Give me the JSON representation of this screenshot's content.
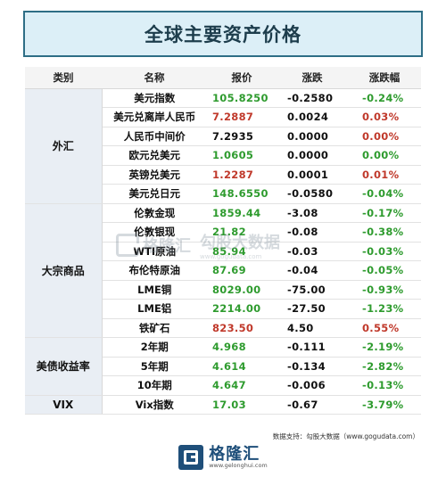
{
  "title": "全球主要资产价格",
  "headers": {
    "category": "类别",
    "name": "名称",
    "price": "报价",
    "change": "涨跌",
    "pct": "涨跌幅"
  },
  "colors": {
    "up": "#c0392b",
    "down": "#2e9b2e",
    "flat": "#c0392b",
    "title_border": "#2e6e86",
    "title_bg": "#dceff7"
  },
  "groups": [
    {
      "category": "外汇",
      "rows": [
        {
          "name": "美元指数",
          "price": "105.8250",
          "change": "-0.2580",
          "pct": "-0.24%",
          "dir": "down"
        },
        {
          "name": "美元兑离岸人民币",
          "price": "7.2887",
          "change": "0.0024",
          "pct": "0.03%",
          "dir": "up"
        },
        {
          "name": "人民币中间价",
          "price": "7.2935",
          "change": "0.0000",
          "pct": "0.00%",
          "dir": "flat_black"
        },
        {
          "name": "欧元兑美元",
          "price": "1.0605",
          "change": "0.0000",
          "pct": "0.00%",
          "dir": "flat_green"
        },
        {
          "name": "英镑兑美元",
          "price": "1.2287",
          "change": "0.0001",
          "pct": "0.01%",
          "dir": "up"
        },
        {
          "name": "美元兑日元",
          "price": "148.6550",
          "change": "-0.0580",
          "pct": "-0.04%",
          "dir": "down"
        }
      ]
    },
    {
      "category": "大宗商品",
      "rows": [
        {
          "name": "伦敦金现",
          "price": "1859.44",
          "change": "-3.08",
          "pct": "-0.17%",
          "dir": "down"
        },
        {
          "name": "伦敦银现",
          "price": "21.82",
          "change": "-0.08",
          "pct": "-0.38%",
          "dir": "down"
        },
        {
          "name": "WTI原油",
          "price": "85.94",
          "change": "-0.03",
          "pct": "-0.03%",
          "dir": "down"
        },
        {
          "name": "布伦特原油",
          "price": "87.69",
          "change": "-0.04",
          "pct": "-0.05%",
          "dir": "down"
        },
        {
          "name": "LME铜",
          "price": "8029.00",
          "change": "-75.00",
          "pct": "-0.93%",
          "dir": "down"
        },
        {
          "name": "LME铝",
          "price": "2214.00",
          "change": "-27.50",
          "pct": "-1.23%",
          "dir": "down"
        },
        {
          "name": "铁矿石",
          "price": "823.50",
          "change": "4.50",
          "pct": "0.55%",
          "dir": "up"
        }
      ]
    },
    {
      "category": "美债收益率",
      "rows": [
        {
          "name": "2年期",
          "price": "4.968",
          "change": "-0.111",
          "pct": "-2.19%",
          "dir": "down"
        },
        {
          "name": "5年期",
          "price": "4.614",
          "change": "-0.134",
          "pct": "-2.82%",
          "dir": "down"
        },
        {
          "name": "10年期",
          "price": "4.647",
          "change": "-0.006",
          "pct": "-0.13%",
          "dir": "down"
        }
      ]
    },
    {
      "category": "VIX",
      "rows": [
        {
          "name": "Vix指数",
          "price": "17.03",
          "change": "-0.67",
          "pct": "-3.79%",
          "dir": "down"
        }
      ]
    }
  ],
  "watermark": {
    "name": "格隆汇",
    "brand": "勾股大数据",
    "url": "www.gogudata.com"
  },
  "source": "数据支持：勾股大数据（www.gogudata.com）",
  "footer": {
    "name": "格隆汇",
    "url": "www.gelonghui.com"
  }
}
